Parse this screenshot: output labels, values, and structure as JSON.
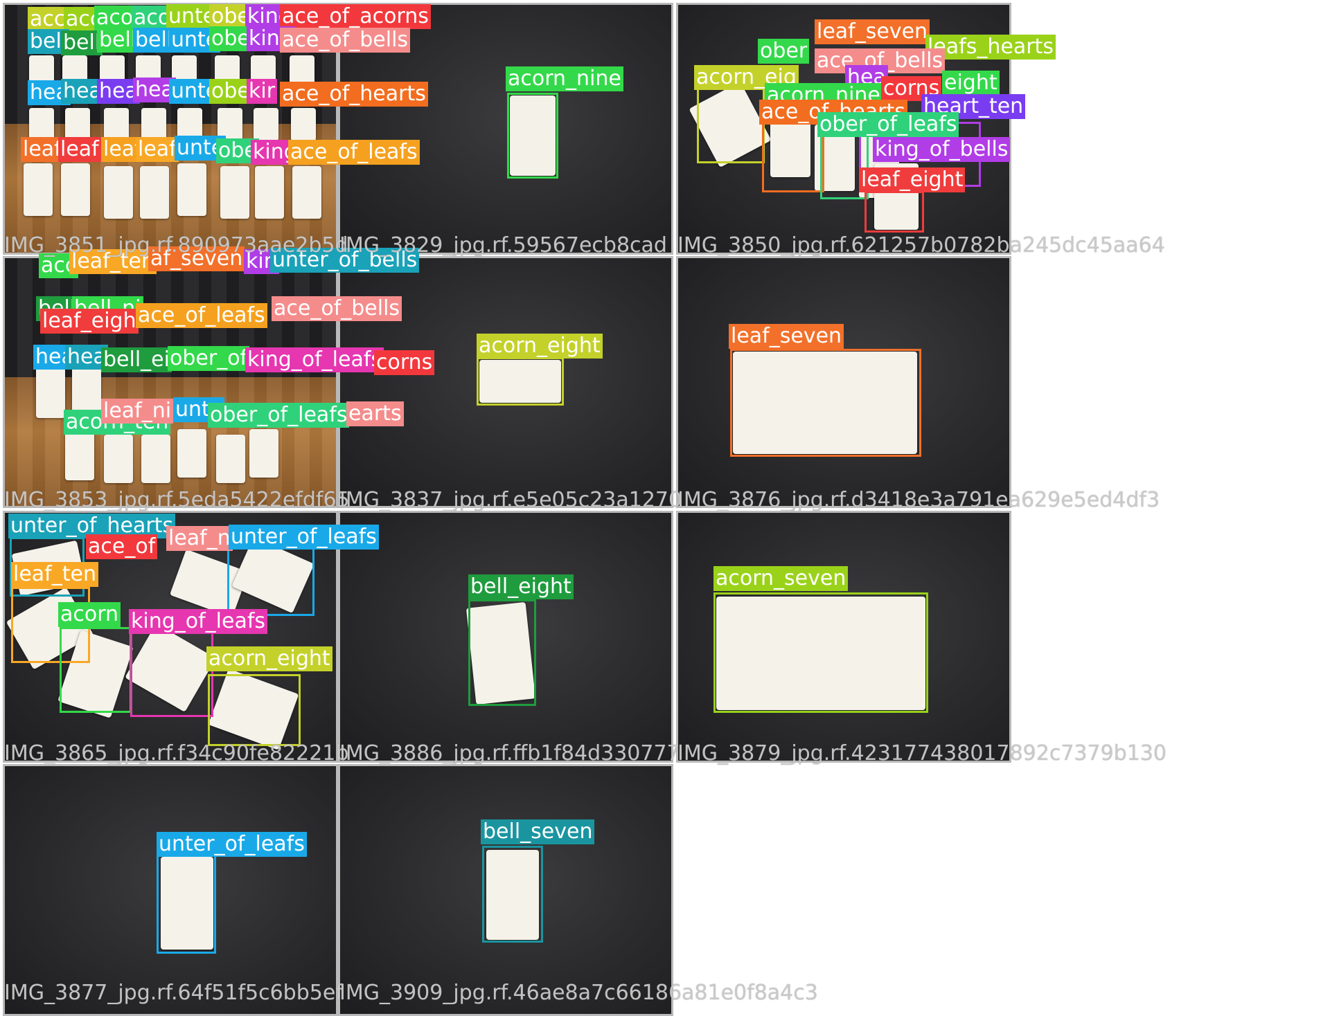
{
  "colors": {
    "acorn_nine": "#33d94a",
    "acorn_eight": "#c4d12a",
    "acorn_seven": "#9ad21a",
    "leaf_seven": "#f2702a",
    "leaf_eight": "#f03c3c",
    "leaf_ten": "#f9a826",
    "unter_of_leafs": "#19a9e8",
    "unter_of_hearts": "#1aa2b8",
    "ace_of_acorns": "#f2383c",
    "ace_of_bells": "#f58c8c",
    "ace_of_hearts": "#f26d1f",
    "ace_of_leafs": "#f5a11f",
    "king_of_bells": "#b13de6",
    "king_of_leafs": "#e636b0",
    "ober_of_leafs": "#2fd27a",
    "bell_eight": "#1f9c3e",
    "bell_seven": "#1a95a0",
    "heart_ten": "#7a3cf0"
  },
  "cells": [
    {
      "caption": "IMG_3851_jpg.rf.890973aae2b5d",
      "labels": [
        {
          "text": "acc",
          "cls": "acorn_eight"
        },
        {
          "text": "acc",
          "cls": "acorn_seven"
        },
        {
          "text": "aco",
          "cls": "acorn_nine"
        },
        {
          "text": "aco",
          "cls": "ober_of_leafs"
        },
        {
          "text": "unte",
          "cls": "acorn_seven"
        },
        {
          "text": "obe",
          "cls": "acorn_eight"
        },
        {
          "text": "king",
          "cls": "king_of_bells"
        },
        {
          "text": "ace_of_acorns",
          "cls": "ace_of_acorns"
        },
        {
          "text": "bell",
          "cls": "unter_of_hearts"
        },
        {
          "text": "bell",
          "cls": "bell_eight"
        },
        {
          "text": "bell",
          "cls": "acorn_nine"
        },
        {
          "text": "bell",
          "cls": "unter_of_leafs"
        },
        {
          "text": "unte",
          "cls": "unter_of_leafs"
        },
        {
          "text": "obe",
          "cls": "acorn_nine"
        },
        {
          "text": "king",
          "cls": "king_of_bells"
        },
        {
          "text": "ace_of_bells",
          "cls": "ace_of_bells"
        },
        {
          "text": "hea",
          "cls": "unter_of_leafs"
        },
        {
          "text": "hea",
          "cls": "unter_of_hearts"
        },
        {
          "text": "hea",
          "cls": "heart_ten"
        },
        {
          "text": "hea",
          "cls": "king_of_bells"
        },
        {
          "text": "unte",
          "cls": "unter_of_leafs"
        },
        {
          "text": "obe",
          "cls": "acorn_seven"
        },
        {
          "text": "kir",
          "cls": "king_of_leafs"
        },
        {
          "text": "ace_of_hearts",
          "cls": "ace_of_hearts"
        },
        {
          "text": "leaf",
          "cls": "leaf_seven"
        },
        {
          "text": "leaf",
          "cls": "leaf_eight"
        },
        {
          "text": "leaf",
          "cls": "ace_of_leafs"
        },
        {
          "text": "leaf",
          "cls": "leaf_ten"
        },
        {
          "text": "unte",
          "cls": "unter_of_leafs"
        },
        {
          "text": "obe",
          "cls": "ober_of_leafs"
        },
        {
          "text": "king",
          "cls": "king_of_leafs"
        },
        {
          "text": "ace_of_leafs",
          "cls": "ace_of_leafs"
        }
      ]
    },
    {
      "caption": "IMG_3829_jpg.rf.59567ecb8cad",
      "labels": [
        {
          "text": "acorn_nine",
          "cls": "acorn_nine"
        }
      ]
    },
    {
      "caption": "IMG_3850_jpg.rf.621257b0782ba245dc45aa64",
      "labels": [
        {
          "text": "leaf_seven",
          "cls": "leaf_seven"
        },
        {
          "text": "ober",
          "cls": "acorn_nine"
        },
        {
          "text": "leafs_hearts",
          "cls": "acorn_seven"
        },
        {
          "text": "ace_of_bells",
          "cls": "ace_of_bells"
        },
        {
          "text": "acorn_eig",
          "cls": "acorn_eight"
        },
        {
          "text": "hea",
          "cls": "king_of_bells"
        },
        {
          "text": "eight",
          "cls": "acorn_nine"
        },
        {
          "text": "acorn_nine",
          "cls": "acorn_nine"
        },
        {
          "text": "corns",
          "cls": "ace_of_acorns"
        },
        {
          "text": "heart_ten",
          "cls": "heart_ten"
        },
        {
          "text": "ace_of_hearts",
          "cls": "ace_of_hearts"
        },
        {
          "text": "ober_of_leafs",
          "cls": "ober_of_leafs"
        },
        {
          "text": "king_of_bells",
          "cls": "king_of_bells"
        },
        {
          "text": "leaf_eight",
          "cls": "leaf_eight"
        }
      ]
    },
    {
      "caption": "IMG_3853_jpg.rf.5eda5422efdf65",
      "labels": [
        {
          "text": "acc",
          "cls": "acorn_nine"
        },
        {
          "text": "leaf_ten",
          "cls": "leaf_ten"
        },
        {
          "text": "af_seven",
          "cls": "leaf_seven"
        },
        {
          "text": "kin",
          "cls": "king_of_bells"
        },
        {
          "text": "unter_of_bells",
          "cls": "unter_of_hearts"
        },
        {
          "text": "bell",
          "cls": "bell_eight"
        },
        {
          "text": "bell_ni",
          "cls": "acorn_nine"
        },
        {
          "text": "leaf_eigh",
          "cls": "leaf_eight"
        },
        {
          "text": "ace_of_leafs",
          "cls": "ace_of_leafs"
        },
        {
          "text": "ace_of_bells",
          "cls": "ace_of_bells"
        },
        {
          "text": "hea",
          "cls": "unter_of_leafs"
        },
        {
          "text": "hea",
          "cls": "unter_of_hearts"
        },
        {
          "text": "bell_ei",
          "cls": "bell_eight"
        },
        {
          "text": "ober_of",
          "cls": "acorn_nine"
        },
        {
          "text": "king_of_leafs",
          "cls": "king_of_leafs"
        },
        {
          "text": "corns",
          "cls": "ace_of_acorns"
        },
        {
          "text": "acorn_ten",
          "cls": "ober_of_leafs"
        },
        {
          "text": "leaf_ni",
          "cls": "ace_of_bells"
        },
        {
          "text": "unte",
          "cls": "unter_of_leafs"
        },
        {
          "text": "ober_of_leafs",
          "cls": "ober_of_leafs"
        },
        {
          "text": "earts",
          "cls": "ace_of_bells"
        }
      ]
    },
    {
      "caption": "IMG_3837_jpg.rf.e5e05c23a1270",
      "labels": [
        {
          "text": "acorn_eight",
          "cls": "acorn_eight"
        }
      ]
    },
    {
      "caption": "IMG_3876_jpg.rf.d3418e3a791ea629e5ed4df3",
      "labels": [
        {
          "text": "leaf_seven",
          "cls": "leaf_seven"
        }
      ]
    },
    {
      "caption": "IMG_3865_jpg.rf.f34c90fe82221b",
      "labels": [
        {
          "text": "unter_of_hearts",
          "cls": "unter_of_hearts"
        },
        {
          "text": "ace_of",
          "cls": "ace_of_acorns"
        },
        {
          "text": "leaf_n",
          "cls": "ace_of_bells"
        },
        {
          "text": "unter_of_leafs",
          "cls": "unter_of_leafs"
        },
        {
          "text": "leaf_ten",
          "cls": "leaf_ten"
        },
        {
          "text": "acorn",
          "cls": "acorn_nine"
        },
        {
          "text": "king_of_leafs",
          "cls": "king_of_leafs"
        },
        {
          "text": "acorn_eight",
          "cls": "acorn_eight"
        }
      ]
    },
    {
      "caption": "IMG_3886_jpg.rf.ffb1f84d330777",
      "labels": [
        {
          "text": "bell_eight",
          "cls": "bell_eight"
        }
      ]
    },
    {
      "caption": "IMG_3879_jpg.rf.423177438017892c7379b130",
      "labels": [
        {
          "text": "acorn_seven",
          "cls": "acorn_seven"
        }
      ]
    },
    {
      "caption": "IMG_3877_jpg.rf.64f51f5c6bb5ef",
      "labels": [
        {
          "text": "unter_of_leafs",
          "cls": "unter_of_leafs"
        }
      ]
    },
    {
      "caption": "IMG_3909_jpg.rf.46ae8a7c66186a81e0f8a4c3",
      "labels": [
        {
          "text": "bell_seven",
          "cls": "bell_seven"
        }
      ]
    }
  ]
}
